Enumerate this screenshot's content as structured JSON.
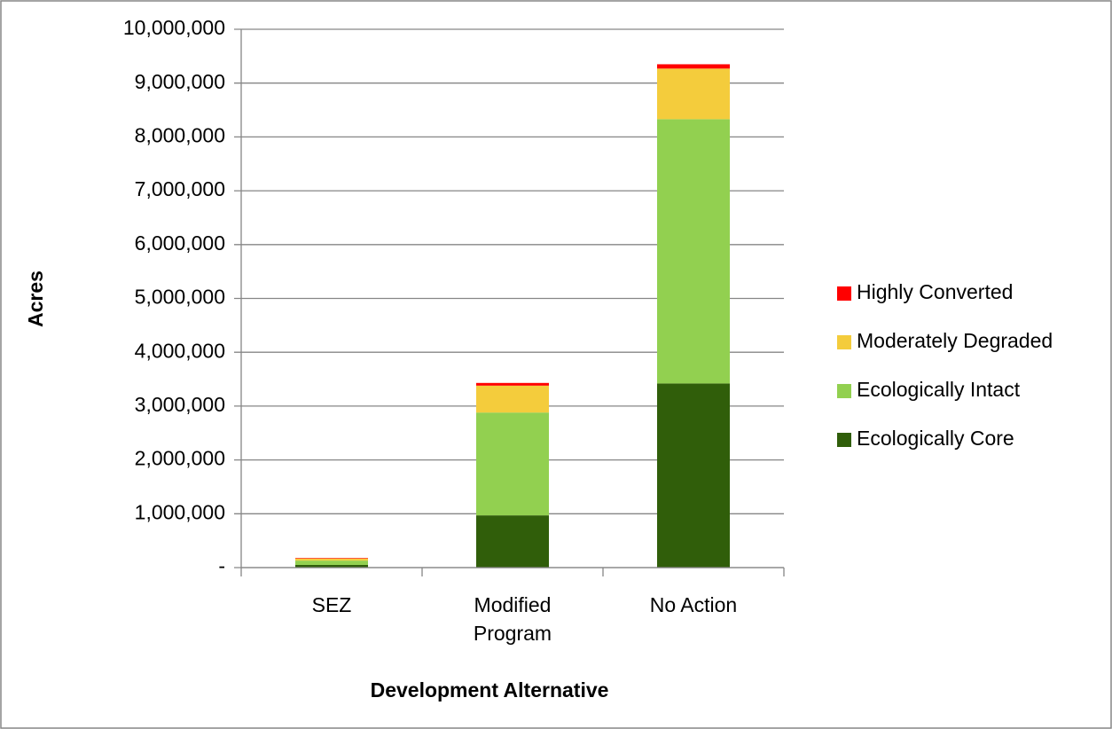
{
  "chart_data": {
    "type": "stacked_bar",
    "categories": [
      "SEZ",
      "Modified Program",
      "No Action"
    ],
    "series": [
      {
        "name": "Ecologically Core",
        "color": "#305e0a",
        "values": [
          50000,
          970000,
          3420000
        ]
      },
      {
        "name": "Ecologically Intact",
        "color": "#92d050",
        "values": [
          80000,
          1910000,
          4910000
        ]
      },
      {
        "name": "Moderately Degraded",
        "color": "#f4cc3c",
        "values": [
          40000,
          500000,
          940000
        ]
      },
      {
        "name": "Highly Converted",
        "color": "#ff0000",
        "values": [
          10000,
          50000,
          80000
        ]
      }
    ],
    "xlabel": "Development Alternative",
    "ylabel": "Acres",
    "ylim": [
      0,
      10000000
    ],
    "yticks": [
      {
        "value": 0,
        "label": "-"
      },
      {
        "value": 1000000,
        "label": "1,000,000"
      },
      {
        "value": 2000000,
        "label": "2,000,000"
      },
      {
        "value": 3000000,
        "label": "3,000,000"
      },
      {
        "value": 4000000,
        "label": "4,000,000"
      },
      {
        "value": 5000000,
        "label": "5,000,000"
      },
      {
        "value": 6000000,
        "label": "6,000,000"
      },
      {
        "value": 7000000,
        "label": "7,000,000"
      },
      {
        "value": 8000000,
        "label": "8,000,000"
      },
      {
        "value": 9000000,
        "label": "9,000,000"
      },
      {
        "value": 10000000,
        "label": "10,000,000"
      }
    ],
    "grid": true,
    "legend": "right"
  }
}
